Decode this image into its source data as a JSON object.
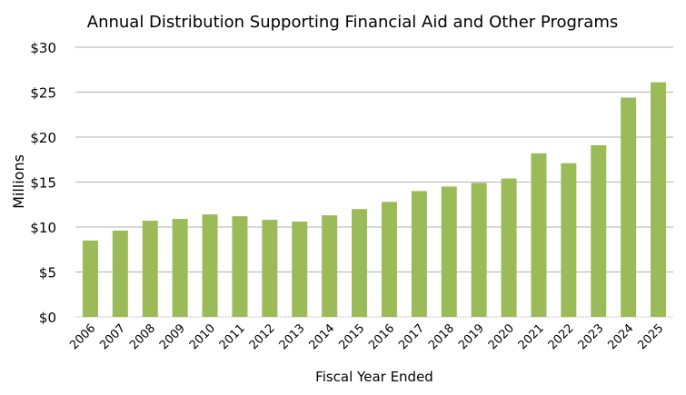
{
  "chart_data": {
    "type": "bar",
    "title": "Annual Distribution Supporting Financial Aid and Other Programs",
    "xlabel": "Fiscal Year Ended",
    "ylabel": "Millions",
    "ylim": [
      0,
      30
    ],
    "yticks": [
      0,
      5,
      10,
      15,
      20,
      25,
      30
    ],
    "ytick_labels": [
      "$0",
      "$5",
      "$10",
      "$15",
      "$20",
      "$25",
      "$30"
    ],
    "grid": true,
    "bar_color": "#9bbb59",
    "grid_color": "#bfbfbf",
    "categories": [
      "2006",
      "2007",
      "2008",
      "2009",
      "2010",
      "2011",
      "2012",
      "2013",
      "2014",
      "2015",
      "2016",
      "2017",
      "2018",
      "2019",
      "2020",
      "2021",
      "2022",
      "2023",
      "2024",
      "2025"
    ],
    "values": [
      8.5,
      9.6,
      10.7,
      10.9,
      11.4,
      11.2,
      10.8,
      10.6,
      11.3,
      12.0,
      12.8,
      14.0,
      14.5,
      14.9,
      15.4,
      18.2,
      17.1,
      19.1,
      24.4,
      26.1
    ]
  }
}
